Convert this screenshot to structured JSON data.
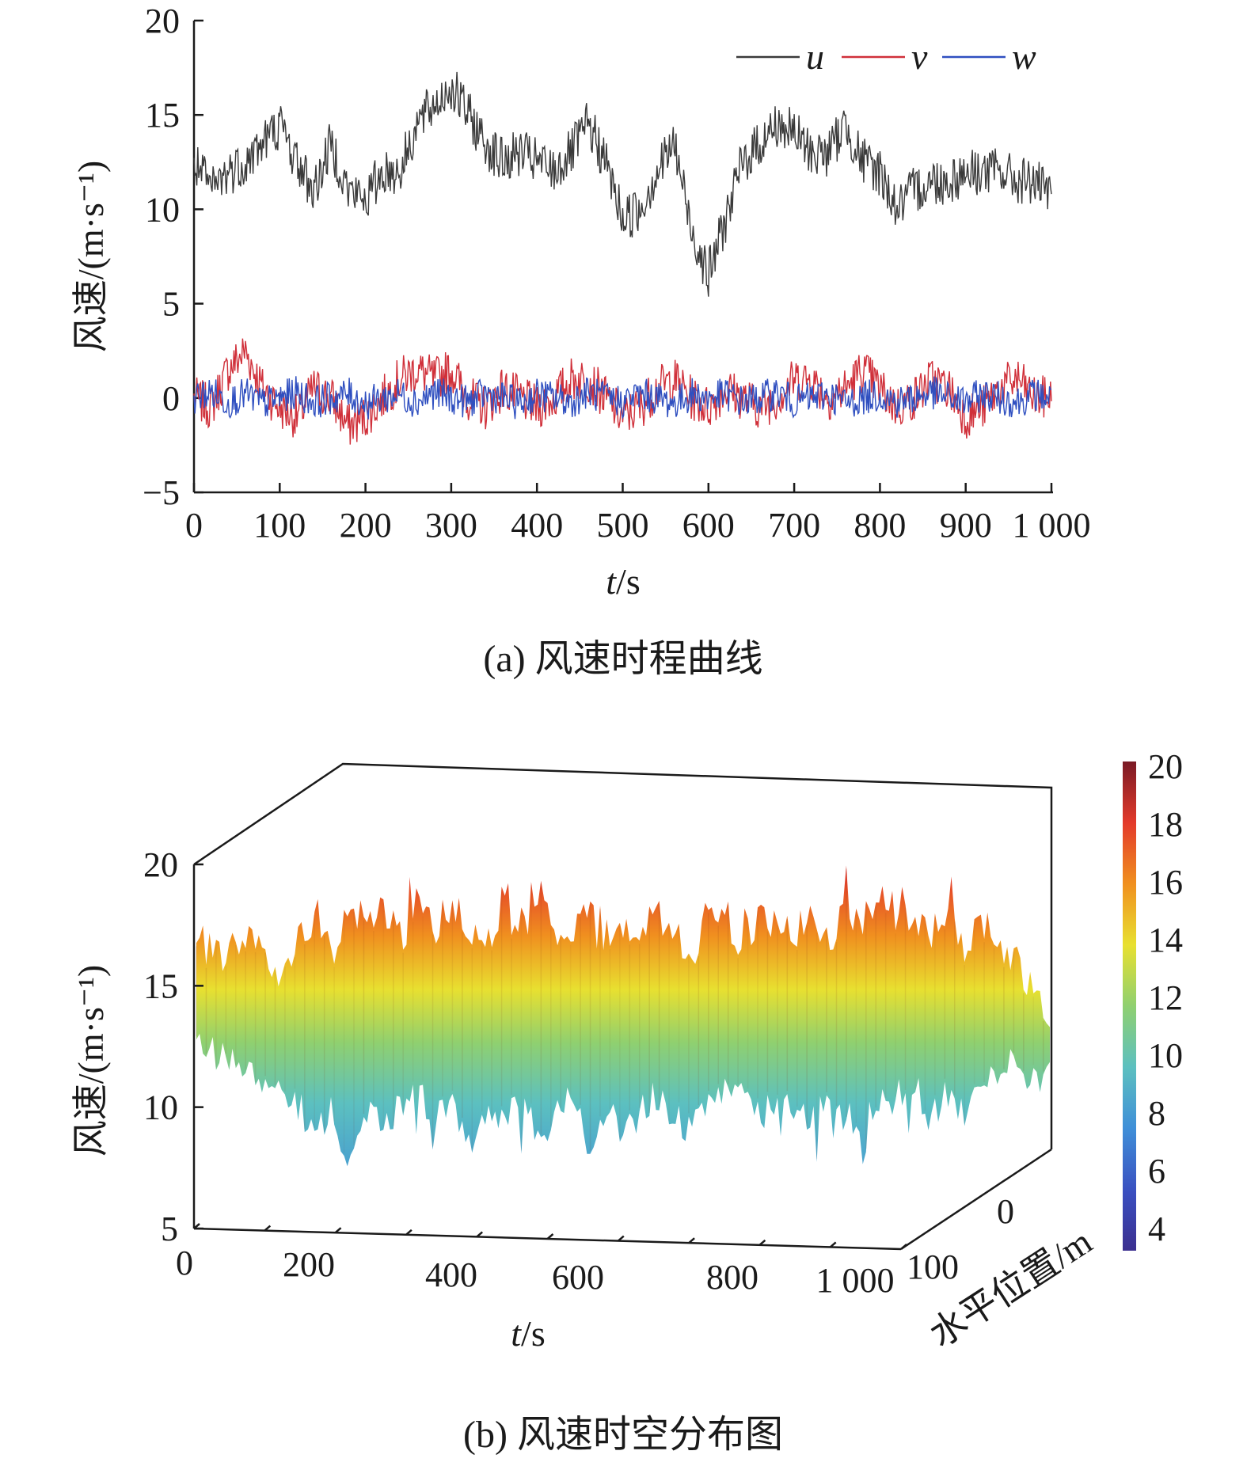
{
  "chart_data": [
    {
      "type": "line",
      "caption": "(a) 风速时程曲线",
      "xlabel_italic": "t",
      "xlabel_unit": "/s",
      "ylabel": "风速/(m·s⁻¹)",
      "xlim": [
        0,
        1000
      ],
      "ylim": [
        -5,
        20
      ],
      "xticks": [
        "0",
        "100",
        "200",
        "300",
        "400",
        "500",
        "600",
        "700",
        "800",
        "900",
        "1 000"
      ],
      "yticks": [
        "−5",
        "0",
        "5",
        "10",
        "15",
        "20"
      ],
      "legend_position": "top-right",
      "series": [
        {
          "name": "u",
          "color": "#3a3a3a",
          "x": [
            0,
            20,
            40,
            60,
            80,
            100,
            120,
            140,
            160,
            180,
            200,
            220,
            240,
            260,
            280,
            300,
            320,
            340,
            360,
            380,
            400,
            420,
            440,
            460,
            480,
            500,
            520,
            540,
            560,
            580,
            600,
            620,
            640,
            660,
            680,
            700,
            720,
            740,
            760,
            780,
            800,
            820,
            840,
            860,
            880,
            900,
            920,
            940,
            960,
            980,
            1000
          ],
          "values": [
            12.5,
            11,
            12,
            12.5,
            13.5,
            14.5,
            12.5,
            11,
            13.5,
            11,
            10.5,
            12,
            12,
            14.5,
            15.5,
            16.5,
            15,
            13.5,
            12.5,
            13,
            12.5,
            12,
            13,
            14.5,
            12.5,
            9.5,
            10,
            12,
            13.5,
            9,
            6.5,
            9.5,
            12.5,
            13.5,
            14.5,
            14,
            13,
            13,
            14.5,
            12.5,
            12,
            10,
            11,
            11.5,
            11.5,
            12,
            12,
            12,
            11.5,
            11.5,
            10.5
          ]
        },
        {
          "name": "v",
          "color": "#d0303a",
          "x": [
            0,
            20,
            40,
            60,
            80,
            100,
            120,
            140,
            160,
            180,
            200,
            220,
            240,
            260,
            280,
            300,
            320,
            340,
            360,
            380,
            400,
            420,
            440,
            460,
            480,
            500,
            520,
            540,
            560,
            580,
            600,
            620,
            640,
            660,
            680,
            700,
            720,
            740,
            760,
            780,
            800,
            820,
            840,
            860,
            880,
            900,
            920,
            940,
            960,
            980,
            1000
          ],
          "values": [
            0,
            -0.5,
            1.5,
            2.5,
            0.5,
            -0.5,
            -1,
            0.5,
            0,
            -1.5,
            -1,
            0,
            1,
            1.5,
            1,
            1.5,
            0,
            -0.5,
            0.5,
            0,
            -0.5,
            0,
            1,
            1,
            0,
            -1,
            -0.5,
            0.5,
            1,
            0,
            -0.5,
            0.5,
            0,
            -0.5,
            0,
            1,
            1,
            0,
            0.5,
            1.5,
            0.5,
            -0.5,
            0,
            1,
            0.5,
            -1,
            -0.5,
            0.5,
            1,
            0,
            0
          ]
        },
        {
          "name": "w",
          "color": "#2f4fc0",
          "x": [
            0,
            20,
            40,
            60,
            80,
            100,
            120,
            140,
            160,
            180,
            200,
            220,
            240,
            260,
            280,
            300,
            320,
            340,
            360,
            380,
            400,
            420,
            440,
            460,
            480,
            500,
            520,
            540,
            560,
            580,
            600,
            620,
            640,
            660,
            680,
            700,
            720,
            740,
            760,
            780,
            800,
            820,
            840,
            860,
            880,
            900,
            920,
            940,
            960,
            980,
            1000
          ],
          "values": [
            0,
            0.3,
            -0.2,
            0.2,
            -0.3,
            0,
            0.3,
            -0.2,
            0,
            0.2,
            -0.3,
            0,
            0.2,
            -0.2,
            0.3,
            0,
            -0.2,
            0.2,
            0,
            -0.3,
            0.2,
            0,
            -0.2,
            0.3,
            0,
            -0.2,
            0.2,
            0,
            -0.3,
            0.2,
            0,
            0.2,
            -0.2,
            0,
            0.3,
            -0.2,
            0,
            0.2,
            -0.3,
            0,
            0.2,
            -0.2,
            0,
            0.3,
            0,
            -0.2,
            0.2,
            0,
            -0.2,
            0.2,
            0
          ]
        }
      ]
    },
    {
      "type": "area",
      "caption": "(b) 风速时空分布图",
      "xlabel_italic": "t",
      "xlabel_unit": "/s",
      "ylabel": "风速/(m·s⁻¹)",
      "zlabel": "水平位置/m",
      "xlim": [
        0,
        1000
      ],
      "ylim": [
        5,
        20
      ],
      "xticks": [
        "0",
        "200",
        "400",
        "600",
        "800",
        "1 000"
      ],
      "yticks": [
        "5",
        "10",
        "15",
        "20"
      ],
      "zticks": [
        "0",
        "100"
      ],
      "colorbar": {
        "min": 4,
        "max": 20,
        "ticks": [
          "20",
          "18",
          "16",
          "14",
          "12",
          "10",
          "8",
          "6",
          "4"
        ]
      },
      "x": [
        0,
        20,
        40,
        60,
        80,
        100,
        120,
        140,
        160,
        180,
        200,
        220,
        240,
        260,
        280,
        300,
        320,
        340,
        360,
        380,
        400,
        420,
        440,
        460,
        480,
        500,
        520,
        540,
        560,
        580,
        600,
        620,
        640,
        660,
        680,
        700,
        720,
        740,
        760,
        780,
        800,
        820,
        840,
        860,
        880,
        900,
        920,
        940,
        960,
        980,
        1000
      ],
      "upper": [
        16.5,
        16.5,
        16,
        17.5,
        16,
        15.5,
        17,
        18,
        16.5,
        18.5,
        17.5,
        18,
        17,
        18.5,
        17.5,
        18.5,
        17,
        17,
        18,
        17.5,
        18,
        17.5,
        17,
        18,
        16.5,
        17.5,
        17,
        18,
        17.5,
        16,
        17.5,
        18,
        16.5,
        18,
        17.5,
        17,
        18.5,
        16.5,
        18,
        17.5,
        19,
        18,
        17.5,
        17,
        18,
        16.5,
        17.5,
        16.5,
        16,
        15,
        14
      ],
      "lower": [
        13,
        12.5,
        12,
        11.5,
        10.5,
        11,
        10,
        9,
        10,
        7.5,
        10,
        9.5,
        10,
        10.5,
        9.5,
        10,
        8.5,
        10,
        9.5,
        10,
        9,
        9.5,
        10.5,
        8.5,
        10,
        9,
        10,
        10.5,
        9.5,
        9,
        10,
        11,
        10.5,
        9.5,
        10.5,
        10,
        9.5,
        10,
        9.5,
        9.5,
        10,
        10.5,
        11,
        9.5,
        10.5,
        9.5,
        11,
        11.5,
        12,
        11,
        11.5
      ]
    }
  ]
}
